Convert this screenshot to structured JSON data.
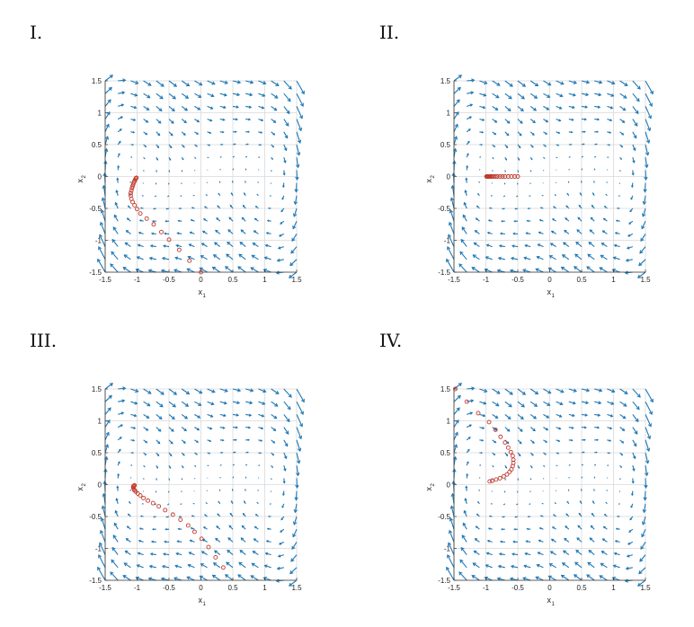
{
  "panels": [
    {
      "label": "I."
    },
    {
      "label": "II."
    },
    {
      "label": "III."
    },
    {
      "label": "IV."
    }
  ],
  "colors": {
    "quiver": "#1f77b4",
    "trajectory": "#c0392b",
    "grid": "#d9d9d9",
    "axis": "#333333"
  },
  "chart_data": [
    {
      "type": "scatter",
      "title": "",
      "xlabel": "x",
      "xlabel_sub": "1",
      "ylabel": "x",
      "ylabel_sub": "2",
      "xlim": [
        -1.5,
        1.5
      ],
      "ylim": [
        -1.5,
        1.5
      ],
      "xticks": [
        "-1.5",
        "-1",
        "-0.5",
        "0",
        "0.5",
        "1",
        "1.5"
      ],
      "yticks": [
        "-1.5",
        "-1",
        "-0.5",
        "0",
        "0.5",
        "1",
        "1.5"
      ],
      "grid": true,
      "quiver_field": true,
      "series": [
        {
          "x": [
            0.0,
            -0.18,
            -0.34,
            -0.5,
            -0.62,
            -0.74,
            -0.85,
            -0.95,
            -1.0,
            -1.04,
            -1.07,
            -1.09,
            -1.1,
            -1.1,
            -1.09,
            -1.08,
            -1.07,
            -1.06,
            -1.05,
            -1.04,
            -1.03,
            -1.02,
            -1.01
          ],
          "y": [
            -1.5,
            -1.32,
            -1.15,
            -0.99,
            -0.87,
            -0.75,
            -0.66,
            -0.58,
            -0.51,
            -0.45,
            -0.4,
            -0.35,
            -0.3,
            -0.26,
            -0.22,
            -0.18,
            -0.15,
            -0.12,
            -0.09,
            -0.07,
            -0.05,
            -0.03,
            -0.02
          ]
        }
      ]
    },
    {
      "type": "scatter",
      "title": "",
      "xlabel": "x",
      "xlabel_sub": "1",
      "ylabel": "x",
      "ylabel_sub": "2",
      "xlim": [
        -1.5,
        1.5
      ],
      "ylim": [
        -1.5,
        1.5
      ],
      "xticks": [
        "-1.5",
        "-1",
        "-0.5",
        "0",
        "0.5",
        "1",
        "1.5"
      ],
      "yticks": [
        "-1.5",
        "-1",
        "-0.5",
        "0",
        "0.5",
        "1",
        "1.5"
      ],
      "grid": true,
      "quiver_field": true,
      "series": [
        {
          "x": [
            -0.5,
            -0.55,
            -0.6,
            -0.65,
            -0.7,
            -0.74,
            -0.78,
            -0.82,
            -0.85,
            -0.88,
            -0.9,
            -0.92,
            -0.94,
            -0.95,
            -0.96,
            -0.97,
            -0.98,
            -0.99
          ],
          "y": [
            0,
            0,
            0,
            0,
            0,
            0,
            0,
            0,
            0,
            0,
            0,
            0,
            0,
            0,
            0,
            0,
            0,
            0
          ]
        }
      ]
    },
    {
      "type": "scatter",
      "title": "",
      "xlabel": "x",
      "xlabel_sub": "1",
      "ylabel": "x",
      "ylabel_sub": "2",
      "xlim": [
        -1.5,
        1.5
      ],
      "ylim": [
        -1.5,
        1.5
      ],
      "xticks": [
        "-1.5",
        "-1",
        "-0.5",
        "0",
        "0.5",
        "1",
        "1.5"
      ],
      "yticks": [
        "-1.5",
        "-1",
        "-0.5",
        "0",
        "0.5",
        "1",
        "1.5"
      ],
      "grid": true,
      "quiver_field": true,
      "series": [
        {
          "x": [
            0.35,
            0.23,
            0.12,
            0.01,
            -0.1,
            -0.2,
            -0.32,
            -0.44,
            -0.56,
            -0.66,
            -0.75,
            -0.83,
            -0.9,
            -0.95,
            -0.99,
            -1.02,
            -1.04,
            -1.05,
            -1.06,
            -1.06,
            -1.05,
            -1.04
          ],
          "y": [
            -1.3,
            -1.14,
            -0.98,
            -0.85,
            -0.74,
            -0.64,
            -0.55,
            -0.47,
            -0.4,
            -0.34,
            -0.29,
            -0.25,
            -0.21,
            -0.17,
            -0.14,
            -0.11,
            -0.09,
            -0.07,
            -0.05,
            -0.03,
            -0.02,
            -0.01
          ]
        }
      ]
    },
    {
      "type": "scatter",
      "title": "",
      "xlabel": "x",
      "xlabel_sub": "1",
      "ylabel": "x",
      "ylabel_sub": "2",
      "xlim": [
        -1.5,
        1.5
      ],
      "ylim": [
        -1.5,
        1.5
      ],
      "xticks": [
        "-1.5",
        "-1",
        "-0.5",
        "0",
        "0.5",
        "1",
        "1.5"
      ],
      "yticks": [
        "-1.5",
        "-1",
        "-0.5",
        "0",
        "0.5",
        "1",
        "1.5"
      ],
      "grid": true,
      "quiver_field": true,
      "series": [
        {
          "x": [
            -1.48,
            -1.3,
            -1.12,
            -0.95,
            -0.85,
            -0.77,
            -0.7,
            -0.65,
            -0.61,
            -0.58,
            -0.57,
            -0.57,
            -0.58,
            -0.6,
            -0.63,
            -0.67,
            -0.72,
            -0.78,
            -0.84,
            -0.9,
            -0.94
          ],
          "y": [
            1.5,
            1.3,
            1.12,
            0.98,
            0.86,
            0.75,
            0.66,
            0.58,
            0.51,
            0.45,
            0.39,
            0.34,
            0.29,
            0.24,
            0.2,
            0.16,
            0.13,
            0.1,
            0.08,
            0.06,
            0.05
          ]
        }
      ]
    }
  ]
}
